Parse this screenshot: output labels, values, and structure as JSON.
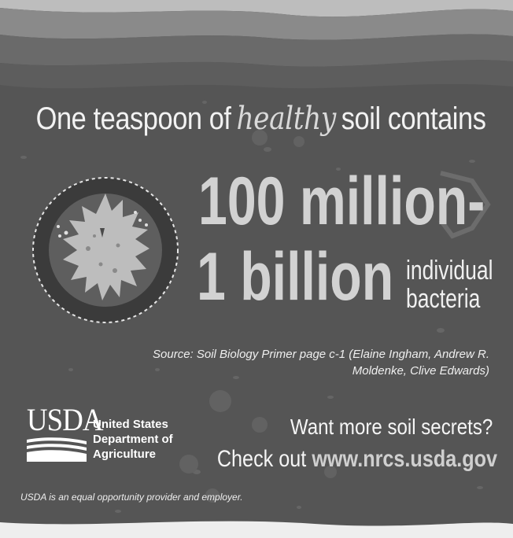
{
  "headline": {
    "before": "One teaspoon of",
    "emphasis": "healthy",
    "after": "soil contains"
  },
  "stat": {
    "line1": "100 million-",
    "line2": "1 billion",
    "unit_line1": "individual",
    "unit_line2": "bacteria"
  },
  "source": {
    "line1": "Source: Soil Biology Primer page c-1 (Elaine Ingham, Andrew R.",
    "line2": "Moldenke, Clive Edwards)"
  },
  "usda": {
    "logo_text": "USDA",
    "agency_line1": "United States",
    "agency_line2": "Department of",
    "agency_line3": "Agriculture"
  },
  "cta": {
    "question": "Want more soil secrets?",
    "prefix": "Check out",
    "url": "www.nrcs.usda.gov"
  },
  "footer": "USDA is an equal opportunity provider and employer.",
  "illustration": {
    "icon": "bacterium-icon",
    "colors": {
      "background": "#555555",
      "soil_band_light": "#8a8a8a",
      "soil_band_dark": "#6a6a6a",
      "circle_outer": "#3a3a3a",
      "circle_inner": "#5c5c5c",
      "bacterium": "#bfbfbf"
    }
  }
}
